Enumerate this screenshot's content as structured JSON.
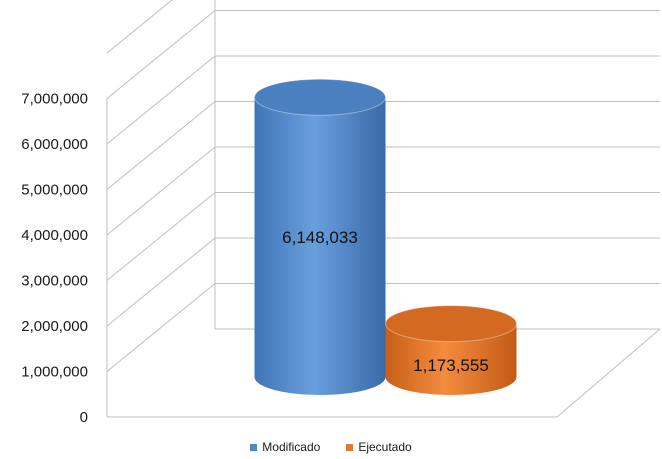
{
  "chart_data": {
    "type": "bar",
    "style": "3d-cylinder",
    "categories": [
      "Modificado",
      "Ejecutado"
    ],
    "values": [
      6148033,
      1173555
    ],
    "data_labels": [
      "6,148,033",
      "1,173,555"
    ],
    "colors": [
      "#4f86c6",
      "#e3782f"
    ],
    "ylim": [
      0,
      7000000
    ],
    "yticks": [
      "0",
      "1,000,000",
      "2,000,000",
      "3,000,000",
      "4,000,000",
      "5,000,000",
      "6,000,000",
      "7,000,000"
    ],
    "grid": true,
    "legend": {
      "position": "bottom",
      "entries": [
        "Modificado",
        "Ejecutado"
      ]
    },
    "title": "",
    "xlabel": "",
    "ylabel": ""
  }
}
